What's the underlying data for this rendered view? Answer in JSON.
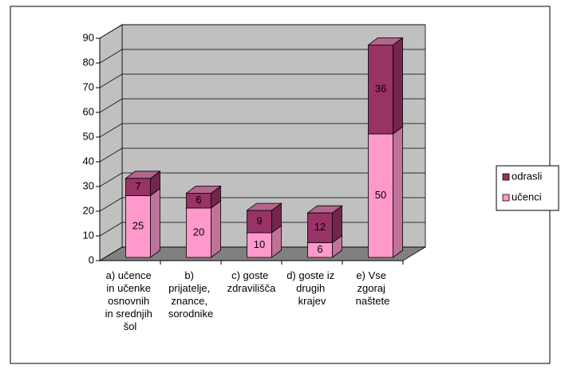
{
  "chart_data": {
    "type": "bar",
    "stacked": true,
    "three_d": true,
    "categories": [
      "a) učence in učenke osnovnih in srednjih šol",
      "b) prijatelje, znance, sorodnike",
      "c) goste zdravilišča",
      "d) goste iz drugih krajev",
      "e) Vse zgoraj naštete"
    ],
    "series": [
      {
        "name": "učenci",
        "color": "#ff99cc",
        "values": [
          25,
          20,
          10,
          6,
          50
        ]
      },
      {
        "name": "odrasli",
        "color": "#993366",
        "values": [
          7,
          6,
          9,
          12,
          36
        ]
      }
    ],
    "ylim": [
      0,
      90
    ],
    "yticks": [
      0,
      10,
      20,
      30,
      40,
      50,
      60,
      70,
      80,
      90
    ],
    "grid": true,
    "legend": "right"
  }
}
